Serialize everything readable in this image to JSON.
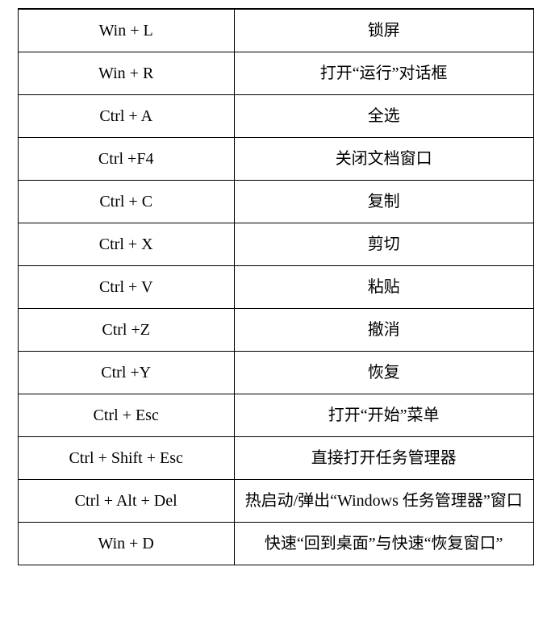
{
  "table": {
    "type": "table",
    "columns": [
      "shortcut",
      "description"
    ],
    "column_widths": [
      "42%",
      "58%"
    ],
    "border_color": "#000000",
    "background_color": "#ffffff",
    "text_color": "#000000",
    "font_size": 20,
    "rows": [
      {
        "shortcut": "Win + L",
        "description": "锁屏"
      },
      {
        "shortcut": "Win + R",
        "description": "打开“运行”对话框"
      },
      {
        "shortcut": "Ctrl + A",
        "description": "全选"
      },
      {
        "shortcut": "Ctrl +F4",
        "description": "关闭文档窗口"
      },
      {
        "shortcut": "Ctrl + C",
        "description": "复制"
      },
      {
        "shortcut": "Ctrl + X",
        "description": "剪切"
      },
      {
        "shortcut": "Ctrl + V",
        "description": "粘贴"
      },
      {
        "shortcut": "Ctrl +Z",
        "description": "撤消"
      },
      {
        "shortcut": "Ctrl +Y",
        "description": "恢复"
      },
      {
        "shortcut": "Ctrl + Esc",
        "description": "打开“开始”菜单"
      },
      {
        "shortcut": "Ctrl + Shift + Esc",
        "description": "直接打开任务管理器"
      },
      {
        "shortcut": "Ctrl + Alt + Del",
        "description": "热启动/弹出“Windows 任务管理器”窗口",
        "twoline": true
      },
      {
        "shortcut": "Win + D",
        "description": "快速“回到桌面”与快速“恢复窗口”",
        "twoline": true
      }
    ]
  }
}
